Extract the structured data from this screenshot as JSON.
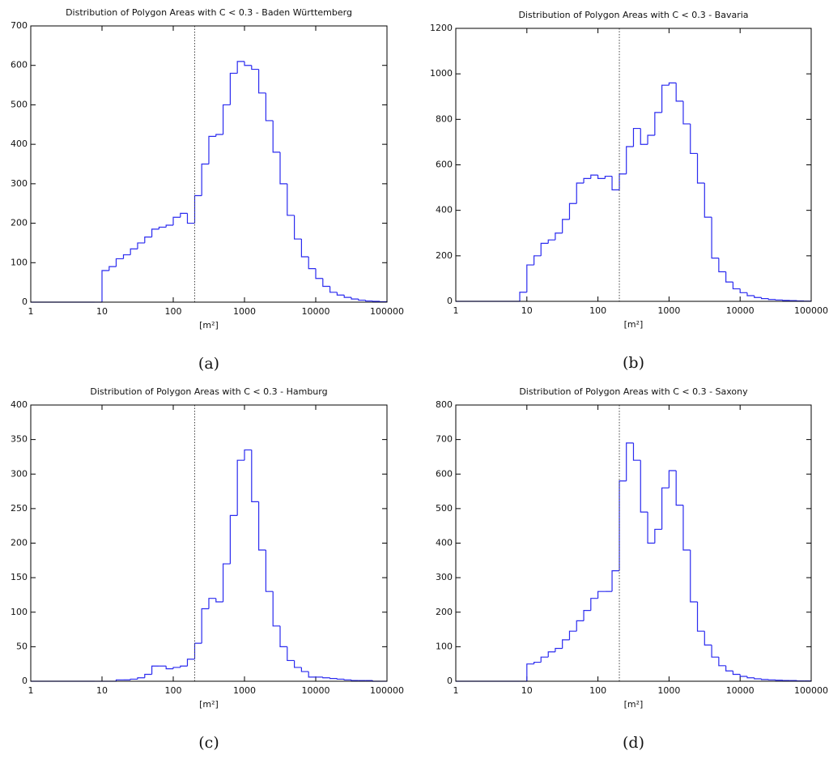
{
  "chart_data": [
    {
      "type": "histogram",
      "title": "Distribution of Polygon Areas with C < 0.3 - Baden Württemberg",
      "xlabel": "[m²]",
      "panel_label": "(a)",
      "color": "#2b2bef",
      "xscale": "log",
      "xlim": [
        1,
        100000
      ],
      "xticks": [
        1,
        10,
        100,
        1000,
        10000,
        100000
      ],
      "ylim": [
        0,
        700
      ],
      "yticks": [
        0,
        100,
        200,
        300,
        400,
        500,
        600,
        700
      ],
      "vline": 200,
      "bins": [
        1,
        7.94,
        10,
        12.6,
        15.8,
        20,
        25.1,
        31.6,
        39.8,
        50.1,
        63.1,
        79.4,
        100,
        126,
        158,
        200,
        251,
        316,
        398,
        501,
        631,
        794,
        1000,
        1259,
        1585,
        1995,
        2512,
        3162,
        3981,
        5012,
        6310,
        7943,
        10000,
        12589,
        15849,
        19953,
        25119,
        31623,
        39811,
        50119,
        63096,
        79433,
        100000
      ],
      "values": [
        0,
        0,
        80,
        90,
        110,
        120,
        135,
        150,
        165,
        185,
        190,
        195,
        215,
        225,
        200,
        270,
        350,
        420,
        425,
        500,
        580,
        610,
        600,
        590,
        530,
        460,
        380,
        300,
        220,
        160,
        115,
        85,
        60,
        40,
        25,
        18,
        12,
        8,
        5,
        3,
        2,
        1
      ]
    },
    {
      "type": "histogram",
      "title": "Distribution of Polygon Areas with C < 0.3 - Bavaria",
      "xlabel": "[m²]",
      "panel_label": "(b)",
      "color": "#2b2bef",
      "xscale": "log",
      "xlim": [
        1,
        100000
      ],
      "xticks": [
        1,
        10,
        100,
        1000,
        10000,
        100000
      ],
      "ylim": [
        0,
        1200
      ],
      "yticks": [
        0,
        200,
        400,
        600,
        800,
        1000,
        1200
      ],
      "vline": 200,
      "bins": [
        1,
        7.94,
        10,
        12.6,
        15.8,
        20,
        25.1,
        31.6,
        39.8,
        50.1,
        63.1,
        79.4,
        100,
        126,
        158,
        200,
        251,
        316,
        398,
        501,
        631,
        794,
        1000,
        1259,
        1585,
        1995,
        2512,
        3162,
        3981,
        5012,
        6310,
        7943,
        10000,
        12589,
        15849,
        19953,
        25119,
        31623,
        39811,
        50119,
        63096,
        79433,
        100000
      ],
      "values": [
        0,
        40,
        160,
        200,
        255,
        270,
        300,
        360,
        430,
        520,
        540,
        555,
        540,
        550,
        490,
        560,
        680,
        760,
        690,
        730,
        830,
        950,
        960,
        880,
        780,
        650,
        520,
        370,
        190,
        130,
        85,
        55,
        38,
        25,
        17,
        12,
        8,
        6,
        4,
        3,
        2,
        1
      ]
    },
    {
      "type": "histogram",
      "title": "Distribution of Polygon Areas with C < 0.3 - Hamburg",
      "xlabel": "[m²]",
      "panel_label": "(c)",
      "color": "#2b2bef",
      "xscale": "log",
      "xlim": [
        1,
        100000
      ],
      "xticks": [
        1,
        10,
        100,
        1000,
        10000,
        100000
      ],
      "ylim": [
        0,
        400
      ],
      "yticks": [
        0,
        50,
        100,
        150,
        200,
        250,
        300,
        350,
        400
      ],
      "vline": 200,
      "bins": [
        1,
        7.94,
        10,
        12.6,
        15.8,
        20,
        25.1,
        31.6,
        39.8,
        50.1,
        63.1,
        79.4,
        100,
        126,
        158,
        200,
        251,
        316,
        398,
        501,
        631,
        794,
        1000,
        1259,
        1585,
        1995,
        2512,
        3162,
        3981,
        5012,
        6310,
        7943,
        10000,
        12589,
        15849,
        19953,
        25119,
        31623,
        39811,
        50119,
        63096,
        79433,
        100000
      ],
      "values": [
        0,
        0,
        0,
        0,
        2,
        2,
        3,
        5,
        10,
        22,
        22,
        18,
        20,
        22,
        32,
        55,
        105,
        120,
        115,
        170,
        240,
        320,
        335,
        260,
        190,
        130,
        80,
        50,
        30,
        20,
        14,
        6,
        6,
        5,
        4,
        3,
        2,
        1,
        1,
        1,
        0,
        0
      ]
    },
    {
      "type": "histogram",
      "title": "Distribution of Polygon Areas with C < 0.3 - Saxony",
      "xlabel": "[m²]",
      "panel_label": "(d)",
      "color": "#2b2bef",
      "xscale": "log",
      "xlim": [
        1,
        100000
      ],
      "xticks": [
        1,
        10,
        100,
        1000,
        10000,
        100000
      ],
      "ylim": [
        0,
        800
      ],
      "yticks": [
        0,
        100,
        200,
        300,
        400,
        500,
        600,
        700,
        800
      ],
      "vline": 200,
      "bins": [
        1,
        7.94,
        10,
        12.6,
        15.8,
        20,
        25.1,
        31.6,
        39.8,
        50.1,
        63.1,
        79.4,
        100,
        126,
        158,
        200,
        251,
        316,
        398,
        501,
        631,
        794,
        1000,
        1259,
        1585,
        1995,
        2512,
        3162,
        3981,
        5012,
        6310,
        7943,
        10000,
        12589,
        15849,
        19953,
        25119,
        31623,
        39811,
        50119,
        63096,
        79433,
        100000
      ],
      "values": [
        0,
        0,
        50,
        55,
        70,
        85,
        95,
        120,
        145,
        175,
        205,
        240,
        260,
        260,
        320,
        580,
        690,
        640,
        490,
        400,
        440,
        560,
        610,
        510,
        380,
        230,
        145,
        105,
        70,
        45,
        30,
        20,
        14,
        10,
        7,
        5,
        4,
        3,
        2,
        2,
        1,
        1
      ]
    }
  ]
}
